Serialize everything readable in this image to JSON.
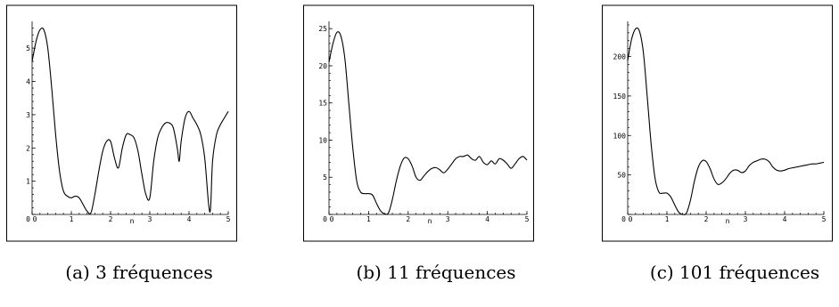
{
  "chart_data": [
    {
      "type": "line",
      "caption": "(a) 3 fréquences",
      "xlabel": "n",
      "ylabel": "",
      "xlim": [
        0,
        5
      ],
      "ylim": [
        0,
        5.7
      ],
      "x_ticks": [
        "0",
        "1",
        "2",
        "3",
        "4",
        "5"
      ],
      "y_ticks": [
        "0",
        "1",
        "2",
        "3",
        "4",
        "5"
      ],
      "x_ticks_values": [
        0,
        1,
        2,
        3,
        4,
        5
      ],
      "y_ticks_values": [
        0,
        1,
        2,
        3,
        4,
        5
      ],
      "series": [
        {
          "x": [
            0,
            0.1,
            0.2,
            0.3,
            0.4,
            0.5,
            0.6,
            0.7,
            0.8,
            0.9,
            1.0,
            1.1,
            1.2,
            1.3,
            1.4,
            1.5,
            1.6,
            1.7,
            1.8,
            1.9,
            2.0,
            2.1,
            2.2,
            2.3,
            2.4,
            2.5,
            2.6,
            2.7,
            2.8,
            2.9,
            3.0,
            3.1,
            3.2,
            3.3,
            3.4,
            3.5,
            3.6,
            3.7,
            3.75,
            3.8,
            3.9,
            4.0,
            4.1,
            4.2,
            4.3,
            4.4,
            4.5,
            4.55,
            4.6,
            4.7,
            4.8,
            4.9,
            5.0
          ],
          "y": [
            4.6,
            5.2,
            5.55,
            5.55,
            5.0,
            3.8,
            2.4,
            1.3,
            0.7,
            0.55,
            0.5,
            0.55,
            0.5,
            0.3,
            0.1,
            0.05,
            0.6,
            1.3,
            1.9,
            2.2,
            2.2,
            1.7,
            1.4,
            2.0,
            2.4,
            2.4,
            2.3,
            1.9,
            1.2,
            0.6,
            0.5,
            1.6,
            2.3,
            2.6,
            2.75,
            2.75,
            2.6,
            2.0,
            1.6,
            2.2,
            2.9,
            3.1,
            2.9,
            2.7,
            2.4,
            1.7,
            0.3,
            0.2,
            1.6,
            2.4,
            2.7,
            2.9,
            3.1
          ]
        }
      ]
    },
    {
      "type": "line",
      "caption": "(b) 11 fréquences",
      "xlabel": "n",
      "ylabel": "",
      "xlim": [
        0,
        5
      ],
      "ylim": [
        0,
        25.5
      ],
      "x_ticks": [
        "0",
        "1",
        "2",
        "3",
        "4",
        "5"
      ],
      "y_ticks": [
        "0",
        "5",
        "10",
        "15",
        "20",
        "25"
      ],
      "x_ticks_values": [
        0,
        1,
        2,
        3,
        4,
        5
      ],
      "y_ticks_values": [
        0,
        5,
        10,
        15,
        20,
        25
      ],
      "series": [
        {
          "x": [
            0,
            0.1,
            0.2,
            0.3,
            0.4,
            0.5,
            0.6,
            0.7,
            0.8,
            0.9,
            1.0,
            1.1,
            1.2,
            1.3,
            1.4,
            1.5,
            1.6,
            1.7,
            1.8,
            1.9,
            2.0,
            2.1,
            2.2,
            2.3,
            2.4,
            2.5,
            2.6,
            2.7,
            2.8,
            2.9,
            3.0,
            3.1,
            3.2,
            3.3,
            3.4,
            3.5,
            3.6,
            3.7,
            3.8,
            3.9,
            4.0,
            4.1,
            4.2,
            4.3,
            4.4,
            4.5,
            4.6,
            4.7,
            4.8,
            4.9,
            5.0
          ],
          "y": [
            20.5,
            23.0,
            24.5,
            24.0,
            21.0,
            15.0,
            9.0,
            4.5,
            3.0,
            2.8,
            2.8,
            2.6,
            1.5,
            0.5,
            0.1,
            0.2,
            2.0,
            4.5,
            6.5,
            7.6,
            7.5,
            6.5,
            5.0,
            4.6,
            5.2,
            5.8,
            6.2,
            6.3,
            6.0,
            5.6,
            6.1,
            6.8,
            7.5,
            7.8,
            7.8,
            8.0,
            7.5,
            7.3,
            7.8,
            7.0,
            6.7,
            7.2,
            6.8,
            7.5,
            7.3,
            6.8,
            6.2,
            6.8,
            7.5,
            7.8,
            7.3
          ]
        }
      ]
    },
    {
      "type": "line",
      "caption": "(c) 101 fréquences",
      "xlabel": "n",
      "ylabel": "",
      "xlim": [
        0,
        5
      ],
      "ylim": [
        0,
        240
      ],
      "x_ticks": [
        "0",
        "1",
        "2",
        "3",
        "4",
        "5"
      ],
      "y_ticks": [
        "0",
        "50",
        "100",
        "150",
        "200"
      ],
      "x_ticks_values": [
        0,
        1,
        2,
        3,
        4,
        5
      ],
      "y_ticks_values": [
        0,
        50,
        100,
        150,
        200
      ],
      "series": [
        {
          "x": [
            0,
            0.1,
            0.2,
            0.3,
            0.4,
            0.5,
            0.6,
            0.7,
            0.8,
            0.9,
            1.0,
            1.1,
            1.2,
            1.3,
            1.4,
            1.5,
            1.6,
            1.7,
            1.8,
            1.9,
            2.0,
            2.1,
            2.2,
            2.3,
            2.4,
            2.5,
            2.6,
            2.7,
            2.8,
            2.9,
            3.0,
            3.1,
            3.2,
            3.3,
            3.4,
            3.5,
            3.6,
            3.7,
            3.8,
            3.9,
            4.0,
            4.1,
            4.2,
            4.3,
            4.4,
            4.5,
            4.6,
            4.7,
            4.8,
            4.9,
            5.0
          ],
          "y": [
            195,
            222,
            235,
            232,
            205,
            148,
            88,
            45,
            28,
            27,
            27,
            22,
            12,
            3,
            0,
            2,
            18,
            42,
            60,
            68,
            67,
            58,
            45,
            38,
            40,
            45,
            52,
            56,
            56,
            53,
            55,
            62,
            66,
            68,
            70,
            70,
            67,
            60,
            56,
            55,
            56,
            58,
            59,
            60,
            61,
            62,
            63,
            64,
            64,
            65,
            66
          ]
        }
      ]
    }
  ]
}
